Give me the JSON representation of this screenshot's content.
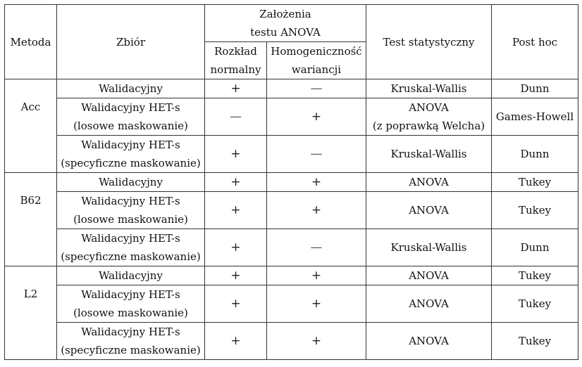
{
  "header": {
    "metoda": "Metoda",
    "zbior": "Zbiór",
    "zalozenia_line1": "Założenia",
    "zalozenia_line2": "testu ANOVA",
    "rozklad_line1": "Rozkład",
    "rozklad_line2": "normalny",
    "homog_line1": "Homogeniczność",
    "homog_line2": "wariancji",
    "test": "Test statystyczny",
    "posthoc": "Post hoc"
  },
  "groups": [
    {
      "method": "Acc",
      "rows": [
        {
          "set": [
            "Walidacyjny"
          ],
          "normal": "+",
          "homog": "—",
          "test": [
            "Kruskal-Wallis"
          ],
          "posthoc": "Dunn"
        },
        {
          "set": [
            "Walidacyjny HET-s",
            "(losowe maskowanie)"
          ],
          "normal": "—",
          "homog": "+",
          "test": [
            "ANOVA",
            "(z poprawką Welcha)"
          ],
          "posthoc": "Games-Howell"
        },
        {
          "set": [
            "Walidacyjny HET-s",
            "(specyficzne maskowanie)"
          ],
          "normal": "+",
          "homog": "—",
          "test": [
            "Kruskal-Wallis"
          ],
          "posthoc": "Dunn"
        }
      ]
    },
    {
      "method": "B62",
      "rows": [
        {
          "set": [
            "Walidacyjny"
          ],
          "normal": "+",
          "homog": "+",
          "test": [
            "ANOVA"
          ],
          "posthoc": "Tukey"
        },
        {
          "set": [
            "Walidacyjny HET-s",
            "(losowe maskowanie)"
          ],
          "normal": "+",
          "homog": "+",
          "test": [
            "ANOVA"
          ],
          "posthoc": "Tukey"
        },
        {
          "set": [
            "Walidacyjny HET-s",
            "(specyficzne maskowanie)"
          ],
          "normal": "+",
          "homog": "—",
          "test": [
            "Kruskal-Wallis"
          ],
          "posthoc": "Dunn"
        }
      ]
    },
    {
      "method": "L2",
      "rows": [
        {
          "set": [
            "Walidacyjny"
          ],
          "normal": "+",
          "homog": "+",
          "test": [
            "ANOVA"
          ],
          "posthoc": "Tukey"
        },
        {
          "set": [
            "Walidacyjny HET-s",
            "(losowe maskowanie)"
          ],
          "normal": "+",
          "homog": "+",
          "test": [
            "ANOVA"
          ],
          "posthoc": "Tukey"
        },
        {
          "set": [
            "Walidacyjny HET-s",
            "(specyficzne maskowanie)"
          ],
          "normal": "+",
          "homog": "+",
          "test": [
            "ANOVA"
          ],
          "posthoc": "Tukey"
        }
      ]
    }
  ]
}
